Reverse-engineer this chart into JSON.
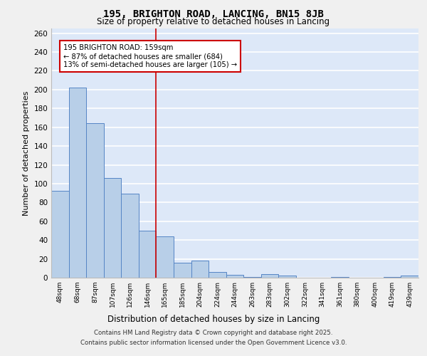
{
  "title1": "195, BRIGHTON ROAD, LANCING, BN15 8JB",
  "title2": "Size of property relative to detached houses in Lancing",
  "xlabel": "Distribution of detached houses by size in Lancing",
  "ylabel": "Number of detached properties",
  "categories": [
    "48sqm",
    "68sqm",
    "87sqm",
    "107sqm",
    "126sqm",
    "146sqm",
    "165sqm",
    "185sqm",
    "204sqm",
    "224sqm",
    "244sqm",
    "263sqm",
    "283sqm",
    "302sqm",
    "322sqm",
    "341sqm",
    "361sqm",
    "380sqm",
    "400sqm",
    "419sqm",
    "439sqm"
  ],
  "values": [
    92,
    202,
    164,
    106,
    89,
    50,
    44,
    16,
    18,
    6,
    3,
    1,
    4,
    2,
    0,
    0,
    1,
    0,
    0,
    1,
    2
  ],
  "bar_color": "#b8cfe8",
  "bar_edge_color": "#5585c5",
  "background_color": "#dde8f8",
  "grid_color": "#ffffff",
  "vline_color": "#cc0000",
  "annotation_title": "195 BRIGHTON ROAD: 159sqm",
  "annotation_line1": "← 87% of detached houses are smaller (684)",
  "annotation_line2": "13% of semi-detached houses are larger (105) →",
  "ylim": [
    0,
    265
  ],
  "yticks": [
    0,
    20,
    40,
    60,
    80,
    100,
    120,
    140,
    160,
    180,
    200,
    220,
    240,
    260
  ],
  "footer1": "Contains HM Land Registry data © Crown copyright and database right 2025.",
  "footer2": "Contains public sector information licensed under the Open Government Licence v3.0."
}
